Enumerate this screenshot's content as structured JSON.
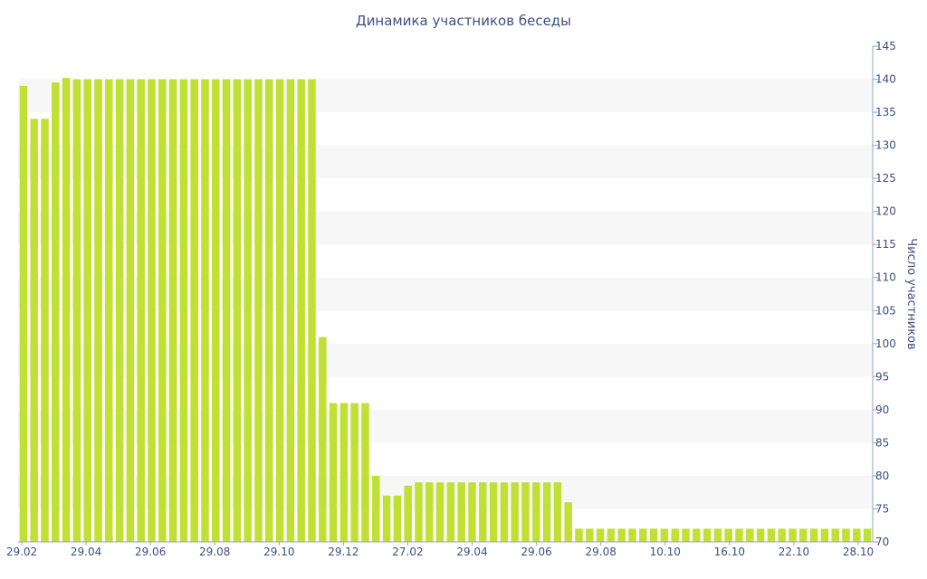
{
  "chart_data": {
    "type": "bar",
    "title": "Динамика участников беседы",
    "xlabel": "",
    "ylabel": "Число участников",
    "ylim": [
      70,
      145
    ],
    "y_ticks": [
      70,
      75,
      80,
      85,
      90,
      95,
      100,
      105,
      110,
      115,
      120,
      125,
      130,
      135,
      140,
      145
    ],
    "y_axis_side": "right",
    "x_tick_labels": [
      "29.02",
      "29.04",
      "29.06",
      "29.08",
      "29.10",
      "29.12",
      "27.02",
      "29.04",
      "29.06",
      "29.08",
      "10.10",
      "16.10",
      "22.10",
      "28.10"
    ],
    "bar_color": "#c0e033",
    "band_color": "#f7f7f7",
    "text_color": "#3e4f82",
    "series": [
      {
        "values": [
          139,
          134,
          134,
          139.5,
          140.2,
          140,
          140,
          140,
          140,
          140,
          140,
          140,
          140,
          140,
          140,
          140,
          140,
          140,
          140,
          140,
          140,
          140,
          140,
          140,
          140,
          140,
          140,
          140,
          101,
          91,
          91,
          91,
          91,
          80,
          77,
          77,
          78.5,
          79,
          79,
          79,
          79,
          79,
          79,
          79,
          79,
          79,
          79,
          79,
          79,
          79,
          79,
          76,
          72,
          72,
          72,
          72,
          72,
          72,
          72,
          72,
          72,
          72,
          72,
          72,
          72,
          72,
          72,
          72,
          72,
          72,
          72,
          72,
          72,
          72,
          72,
          72,
          72,
          72,
          72,
          72
        ]
      }
    ]
  }
}
